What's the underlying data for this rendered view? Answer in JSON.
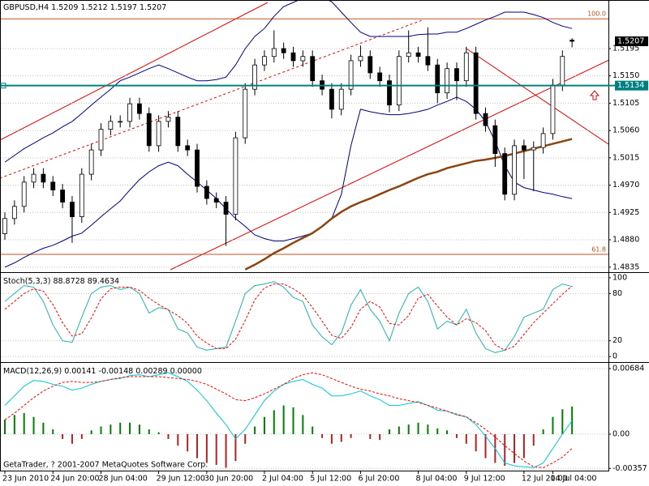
{
  "chart_data": [
    {
      "type": "candlestick",
      "title": "GBPUSD,H4",
      "categories": [
        "23 Jun 2010",
        null,
        null,
        null,
        null,
        "24 Jun 20:00",
        null,
        null,
        null,
        null,
        "28 Jun 04:00",
        null,
        null,
        null,
        null,
        null,
        "29 Jun 12:00",
        null,
        null,
        null,
        null,
        "30 Jun 20:00",
        null,
        null,
        null,
        null,
        null,
        "2 Jul 04:00",
        null,
        null,
        null,
        null,
        "5 Jul 12:00",
        null,
        null,
        null,
        null,
        "6 Jul 20:00",
        null,
        null,
        null,
        null,
        null,
        "8 Jul 04:00",
        null,
        null,
        null,
        null,
        "9 Jul 12:00",
        null,
        null,
        null,
        null,
        null,
        "12 Jul 20:00",
        null,
        null,
        "14 Jul 04:00",
        null,
        null
      ],
      "open": [
        1.489,
        1.4915,
        1.4935,
        1.4975,
        1.4988,
        1.4975,
        1.4962,
        1.4942,
        1.4918,
        1.4988,
        1.5028,
        1.5062,
        1.5075,
        1.5075,
        1.5104,
        1.5088,
        1.5035,
        1.5075,
        1.5082,
        1.5035,
        1.5028,
        1.4968,
        1.4948,
        1.4942,
        1.4922,
        1.5048,
        1.5128,
        1.5168,
        1.5182,
        1.5195,
        1.5188,
        1.5175,
        1.5182,
        1.5142,
        1.5128,
        1.5095,
        1.5128,
        1.5175,
        1.5182,
        1.5155,
        1.5142,
        1.5102,
        1.5182,
        1.5188,
        1.5182,
        1.5168,
        1.5122,
        1.5162,
        1.5142,
        1.5188,
        1.5088,
        1.5068,
        1.5022,
        1.4955,
        1.5035,
        1.5028,
        1.5032,
        1.5055,
        1.5135,
        1.5209
      ],
      "high": [
        1.4925,
        1.4945,
        1.4985,
        1.4998,
        1.4998,
        1.4985,
        1.4972,
        1.4952,
        1.4998,
        1.5038,
        1.5072,
        1.5085,
        1.5085,
        1.5114,
        1.5114,
        1.5098,
        1.5085,
        1.5092,
        1.5092,
        1.5045,
        1.5038,
        1.4978,
        1.4958,
        1.4952,
        1.5058,
        1.5138,
        1.5178,
        1.5192,
        1.5225,
        1.5205,
        1.5198,
        1.5192,
        1.5192,
        1.5152,
        1.5138,
        1.5138,
        1.5185,
        1.52,
        1.5192,
        1.5165,
        1.5152,
        1.5192,
        1.5225,
        1.5198,
        1.523,
        1.5178,
        1.5172,
        1.5172,
        1.5198,
        1.5198,
        1.5098,
        1.5078,
        1.5032,
        1.5045,
        1.5045,
        1.5042,
        1.5065,
        1.5145,
        1.5192,
        1.5212
      ],
      "low": [
        1.488,
        1.4905,
        1.4925,
        1.4965,
        1.4965,
        1.4952,
        1.4932,
        1.4875,
        1.4908,
        1.4978,
        1.5018,
        1.5052,
        1.5065,
        1.5065,
        1.5078,
        1.5025,
        1.5025,
        1.5065,
        1.5025,
        1.5018,
        1.4958,
        1.4938,
        1.4932,
        1.487,
        1.4912,
        1.5038,
        1.5118,
        1.5158,
        1.5172,
        1.5178,
        1.5165,
        1.5165,
        1.5132,
        1.5118,
        1.508,
        1.5085,
        1.5118,
        1.5165,
        1.5145,
        1.5132,
        1.509,
        1.5092,
        1.5172,
        1.5172,
        1.5158,
        1.5105,
        1.5112,
        1.511,
        1.5132,
        1.5078,
        1.5058,
        1.5,
        1.4945,
        1.4945,
        1.498,
        1.496,
        1.5022,
        1.5045,
        1.5125,
        1.5197
      ],
      "close": [
        1.4915,
        1.4935,
        1.4975,
        1.4988,
        1.4975,
        1.4962,
        1.4942,
        1.4918,
        1.4988,
        1.5028,
        1.5062,
        1.5075,
        1.5075,
        1.5104,
        1.5088,
        1.5035,
        1.5075,
        1.5082,
        1.5035,
        1.5028,
        1.4968,
        1.4948,
        1.4942,
        1.4922,
        1.5048,
        1.5128,
        1.5168,
        1.5182,
        1.5195,
        1.5188,
        1.5175,
        1.5182,
        1.5142,
        1.5128,
        1.5095,
        1.5128,
        1.5175,
        1.5182,
        1.5155,
        1.5142,
        1.5102,
        1.5182,
        1.5188,
        1.5182,
        1.5168,
        1.5122,
        1.5162,
        1.5142,
        1.5188,
        1.5088,
        1.5068,
        1.5022,
        1.4955,
        1.5035,
        1.5028,
        1.5032,
        1.5055,
        1.5135,
        1.5182,
        1.5207
      ],
      "up_color": "#ffffff",
      "down_color": "#000000",
      "bands": {
        "color": "#000080",
        "upper": [
          1.5008,
          1.5019,
          1.503,
          1.5039,
          1.5048,
          1.5056,
          1.5066,
          1.5075,
          1.5088,
          1.5102,
          1.5115,
          1.5128,
          1.5142,
          1.5148,
          1.5155,
          1.5162,
          1.5168,
          1.5162,
          1.5155,
          1.5148,
          1.5142,
          1.5142,
          1.5144,
          1.5148,
          1.5168,
          1.5195,
          1.5215,
          1.5228,
          1.5248,
          1.5264,
          1.5271,
          1.5278,
          1.5282,
          1.528,
          1.5272,
          1.5255,
          1.5238,
          1.5222,
          1.5215,
          1.5215,
          1.5215,
          1.5215,
          1.5215,
          1.5218,
          1.5219,
          1.5219,
          1.5222,
          1.5222,
          1.5228,
          1.5235,
          1.5242,
          1.5248,
          1.5255,
          1.5255,
          1.5255,
          1.5251,
          1.5246,
          1.5238,
          1.5232,
          1.5228
        ],
        "lower": [
          1.4835,
          1.4842,
          1.4851,
          1.4859,
          1.4866,
          1.4871,
          1.4878,
          1.4886,
          1.4891,
          1.4904,
          1.4918,
          1.4931,
          1.4944,
          1.4962,
          1.4979,
          1.4992,
          1.5002,
          1.5008,
          1.5002,
          1.4988,
          1.4975,
          1.4962,
          1.4948,
          1.4931,
          1.4915,
          1.4902,
          1.4888,
          1.4882,
          1.4878,
          1.4878,
          1.4882,
          1.4886,
          1.4891,
          1.4902,
          1.4915,
          1.4955,
          1.5035,
          1.5095,
          1.5091,
          1.5088,
          1.5086,
          1.5086,
          1.5088,
          1.5091,
          1.5095,
          1.5102,
          1.5108,
          1.5115,
          1.5108,
          1.5095,
          1.5075,
          1.5042,
          1.5002,
          1.4975,
          1.4966,
          1.4962,
          1.4958,
          1.4955,
          1.4951,
          1.4948
        ]
      },
      "ma": {
        "color": "#8b4513",
        "values": [
          null,
          null,
          null,
          null,
          null,
          null,
          null,
          null,
          null,
          null,
          null,
          null,
          null,
          null,
          null,
          null,
          null,
          null,
          null,
          null,
          null,
          null,
          null,
          null,
          null,
          1.4831,
          1.4839,
          1.4848,
          1.4858,
          1.4866,
          1.4875,
          1.4883,
          1.4891,
          1.4902,
          1.4915,
          1.4926,
          1.4935,
          1.4942,
          1.4948,
          1.4955,
          1.4962,
          1.4968,
          1.4975,
          1.4982,
          1.4988,
          1.4992,
          1.4998,
          1.5002,
          1.5006,
          1.501,
          1.5012,
          1.5015,
          1.5018,
          1.5022,
          1.5026,
          1.503,
          1.5034,
          1.5038,
          1.5042,
          1.5046
        ]
      },
      "price_line": {
        "value": 1.5134,
        "color": "#008080"
      },
      "fib_color": "#c05020",
      "fib_levels": [
        {
          "price": 1.5244,
          "label": "100.0"
        },
        {
          "price": 1.4856,
          "label": "61.8"
        }
      ],
      "ylim": [
        1.4828,
        1.5275
      ],
      "yticks": [
        1.5195,
        {
          "value": 1.515,
          "label": "1.5150"
        },
        1.5105,
        {
          "value": 1.506,
          "label": "1.5060"
        },
        1.5015,
        {
          "value": 1.497,
          "label": "1.4970"
        },
        1.4925,
        {
          "value": 1.488,
          "label": "1.4880"
        },
        1.4835
      ],
      "grid": true
    },
    {
      "type": "stochastic",
      "title": "Stoch(5,3,3)",
      "main": {
        "color": "#20b2aa",
        "values": [
          70,
          80,
          90,
          88,
          70,
          40,
          20,
          18,
          50,
          80,
          88,
          90,
          85,
          88,
          80,
          55,
          62,
          60,
          35,
          30,
          12,
          8,
          10,
          12,
          45,
          80,
          90,
          92,
          95,
          88,
          75,
          70,
          40,
          25,
          15,
          30,
          65,
          85,
          60,
          45,
          20,
          55,
          80,
          88,
          70,
          35,
          45,
          40,
          60,
          30,
          10,
          5,
          8,
          25,
          50,
          55,
          60,
          85,
          92,
          88.8728
        ]
      },
      "signal": {
        "color": "#ff0000",
        "values": [
          60,
          70,
          80,
          86,
          83,
          66,
          43,
          26,
          29,
          49,
          73,
          86,
          88,
          88,
          84,
          74,
          66,
          59,
          52,
          42,
          26,
          17,
          10,
          10,
          22,
          46,
          72,
          87,
          92,
          92,
          86,
          78,
          62,
          45,
          27,
          23,
          37,
          60,
          70,
          63,
          42,
          40,
          52,
          74,
          79,
          64,
          50,
          40,
          48,
          43,
          33,
          15,
          8,
          13,
          28,
          43,
          55,
          67,
          79,
          89.4634
        ]
      },
      "ylim": [
        -6,
        105
      ],
      "yticks": [
        0,
        20,
        80,
        100
      ],
      "grid": true
    },
    {
      "type": "macd",
      "title": "MACD(12,26,9)",
      "macd": {
        "color": "#00c8d8",
        "values": [
          0.003,
          0.004,
          0.005,
          0.0056,
          0.0055,
          0.0052,
          0.005,
          0.0046,
          0.0048,
          0.0052,
          0.0055,
          0.0057,
          0.0058,
          0.0061,
          0.0062,
          0.006,
          0.0062,
          0.0064,
          0.006,
          0.0055,
          0.0046,
          0.0035,
          0.0022,
          0.001,
          -0.0005,
          0.0005,
          0.002,
          0.0035,
          0.0045,
          0.0052,
          0.0055,
          0.0057,
          0.0052,
          0.0048,
          0.004,
          0.004,
          0.0042,
          0.0045,
          0.004,
          0.0036,
          0.003,
          0.003,
          0.0032,
          0.0034,
          0.003,
          0.0025,
          0.0024,
          0.002,
          0.0018,
          0.001,
          -0.0002,
          -0.0015,
          -0.003,
          -0.0033,
          -0.0034,
          -0.0035,
          -0.003,
          -0.0015,
          0,
          0.00141
        ]
      },
      "signal": {
        "color": "#ff0000",
        "values": [
          0.0015,
          0.0022,
          0.003,
          0.0038,
          0.0045,
          0.005,
          0.0054,
          0.0055,
          0.0054,
          0.0054,
          0.0055,
          0.0057,
          0.0059,
          0.006,
          0.006,
          0.006,
          0.006,
          0.0059,
          0.0058,
          0.0057,
          0.0055,
          0.0052,
          0.0047,
          0.0042,
          0.0036,
          0.0035,
          0.0038,
          0.0042,
          0.0047,
          0.0052,
          0.0058,
          0.0062,
          0.0064,
          0.0062,
          0.0058,
          0.0054,
          0.005,
          0.0047,
          0.0045,
          0.0042,
          0.004,
          0.0037,
          0.0035,
          0.0033,
          0.003,
          0.0027,
          0.0024,
          0.0021,
          0.0018,
          0.0012,
          0.0005,
          -0.0003,
          -0.0012,
          -0.002,
          -0.0028,
          -0.0034,
          -0.0035,
          -0.003,
          -0.0024,
          -0.00148
        ]
      },
      "histogram": {
        "up_color": "#008000",
        "down_color": "#b22222",
        "values": [
          0.0015,
          0.002,
          0.0022,
          0.0018,
          0.0012,
          0.0005,
          -0.0005,
          -0.001,
          -0.0005,
          0.0004,
          0.0008,
          0.001,
          0.0012,
          0.0012,
          0.001,
          0.0005,
          0.0002,
          -0.0005,
          -0.0012,
          -0.0018,
          -0.0025,
          -0.003,
          -0.0032,
          -0.0035,
          -0.0028,
          -0.001,
          0.0008,
          0.0018,
          0.0025,
          0.003,
          0.0028,
          0.002,
          0.0008,
          -0.0004,
          -0.001,
          -0.0008,
          -0.0004,
          0,
          -0.0005,
          -0.0006,
          0.0005,
          0.0008,
          0.001,
          0.0012,
          0.001,
          0.0006,
          0.0004,
          -0.0004,
          -0.001,
          -0.0018,
          -0.0025,
          -0.003,
          -0.0033,
          -0.003,
          -0.0025,
          -0.0012,
          0.0005,
          0.0018,
          0.0026,
          0.00289
        ]
      },
      "extra_readout": {
        "value": 0,
        "label": "0.00000"
      },
      "footer": "GetaTrader, ? 2001-2007 MetaQuotes Software Corp.",
      "ylim": [
        -0.0038,
        0.00735
      ],
      "yticks": [
        0.00684,
        {
          "value": 0,
          "label": "0.00"
        },
        -0.00357
      ],
      "grid": true
    }
  ]
}
